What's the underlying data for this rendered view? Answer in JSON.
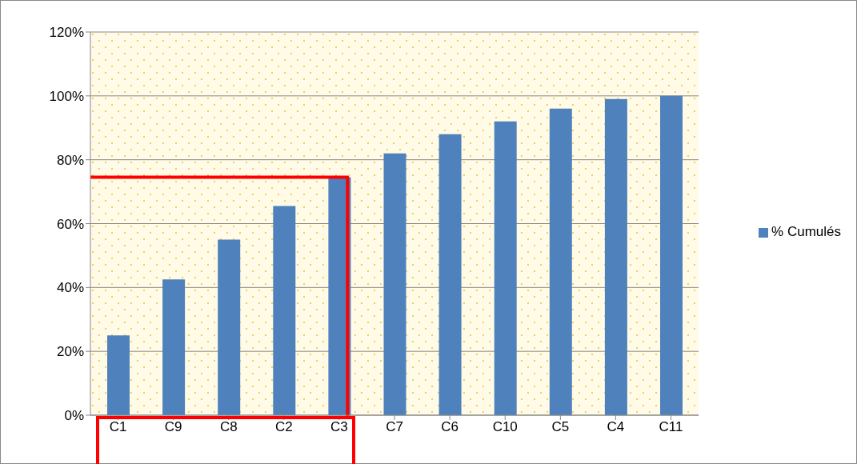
{
  "chart_data": {
    "type": "bar",
    "categories": [
      "C1",
      "C9",
      "C8",
      "C2",
      "C3",
      "C7",
      "C6",
      "C10",
      "C5",
      "C4",
      "C11"
    ],
    "series": [
      {
        "name": "% Cumulés",
        "color": "#4f81bd",
        "values": [
          25,
          42.5,
          55,
          65.5,
          74.5,
          82,
          88,
          92,
          96,
          99,
          100
        ]
      }
    ],
    "ylim": [
      0,
      120
    ],
    "yticks": [
      {
        "value": 0,
        "label": "0%"
      },
      {
        "value": 20,
        "label": "20%"
      },
      {
        "value": 40,
        "label": "40%"
      },
      {
        "value": 60,
        "label": "60%"
      },
      {
        "value": 80,
        "label": "80%"
      },
      {
        "value": 100,
        "label": "100%"
      },
      {
        "value": 120,
        "label": "120%"
      }
    ],
    "ref_lines": [
      {
        "axis": "y",
        "value": 74.5,
        "color": "#ff0000"
      }
    ],
    "grid": "y",
    "legend": "right"
  }
}
